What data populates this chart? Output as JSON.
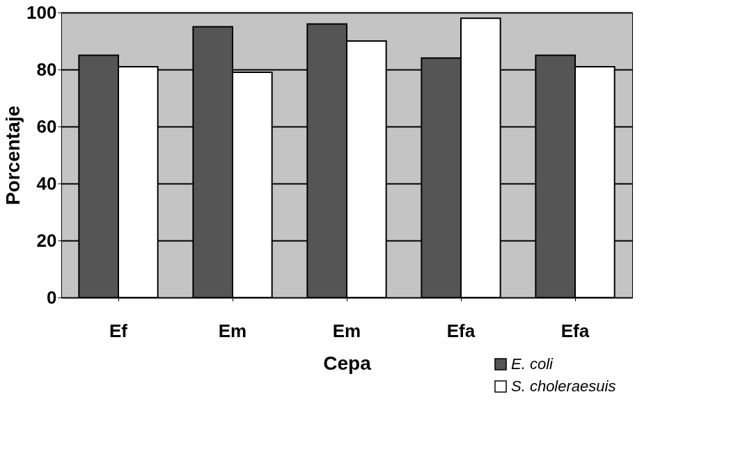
{
  "chart_data": {
    "type": "bar",
    "xlabel": "Cepa",
    "ylabel": "Porcentaje",
    "categories": [
      "Ef",
      "Em",
      "Em",
      "Efa",
      "Efa"
    ],
    "series": [
      {
        "name": "E. coli",
        "color": "#555555",
        "values": [
          85,
          95,
          96,
          84,
          85
        ]
      },
      {
        "name": "S. choleraesuis",
        "color": "#ffffff",
        "values": [
          81,
          79,
          90,
          98,
          81
        ]
      }
    ],
    "ylim": [
      0,
      100
    ],
    "yticks": [
      0,
      20,
      40,
      60,
      80,
      100
    ],
    "grid": "y",
    "legend": "bottom right"
  }
}
